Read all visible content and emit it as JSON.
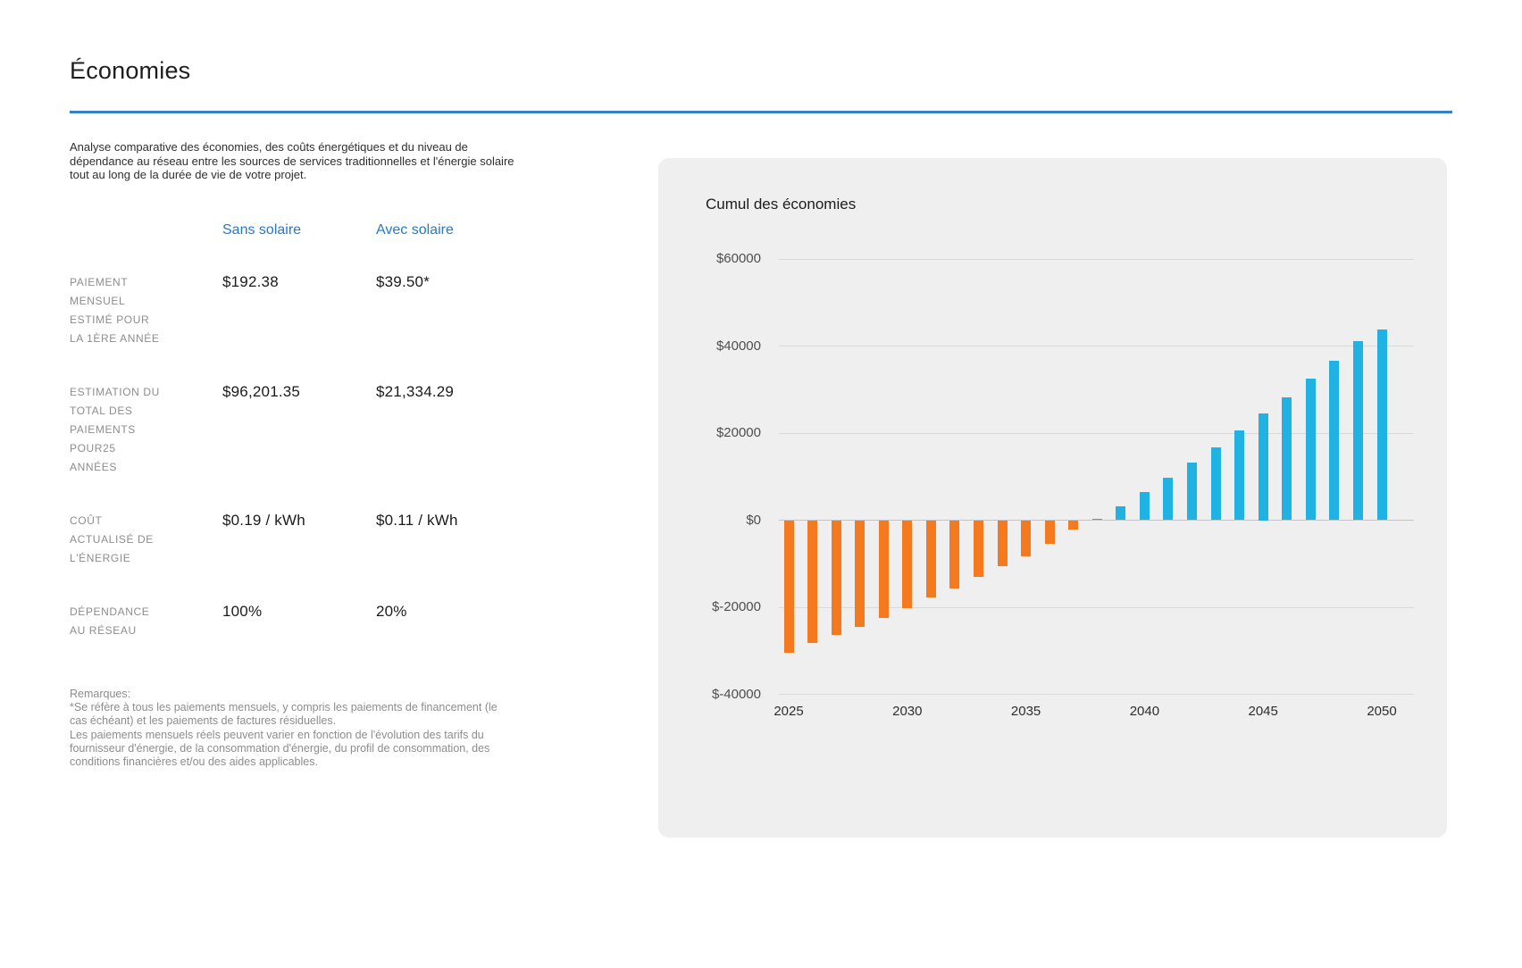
{
  "page": {
    "title": "Économies",
    "description": "Analyse comparative des économies, des coûts énergétiques et du niveau de\ndépendance au réseau entre les sources de services traditionnelles et l'énergie solaire\ntout au long de la durée de vie de votre projet.",
    "accent_color": "#3182c8"
  },
  "comparison": {
    "columns": [
      "Sans solaire",
      "Avec solaire"
    ],
    "rows": [
      {
        "label": "PAIEMENT\nMENSUEL\nESTIMÉ POUR\nLA 1ÈRE ANNÉE",
        "without_solar": "$192.38",
        "with_solar": "$39.50*"
      },
      {
        "label": "ESTIMATION DU\nTOTAL DES\nPAIEMENTS\nPOUR25\nANNÉES",
        "without_solar": "$96,201.35",
        "with_solar": "$21,334.29"
      },
      {
        "label": "COÛT\nACTUALISÉ DE\nL'ÉNERGIE",
        "without_solar": "$0.19 / kWh",
        "with_solar": "$0.11 / kWh"
      },
      {
        "label": "DÉPENDANCE\nAU RÉSEAU",
        "without_solar": "100%",
        "with_solar": "20%"
      }
    ]
  },
  "notes": {
    "heading": "Remarques:",
    "items": [
      "*Se réfère à tous les paiements mensuels, y compris les paiements de financement (le\ncas échéant) et les paiements de factures résiduelles.",
      "Les paiements mensuels réels peuvent varier en fonction de l'évolution des tarifs du\nfournisseur d'énergie, de la consommation d'énergie, du profil de consommation, des\nconditions financières et/ou des aides applicables."
    ]
  },
  "chart_data": {
    "type": "bar",
    "title": "Cumul des économies",
    "x": [
      2025,
      2026,
      2027,
      2028,
      2029,
      2030,
      2031,
      2032,
      2033,
      2034,
      2035,
      2036,
      2037,
      2038,
      2039,
      2040,
      2041,
      2042,
      2043,
      2044,
      2045,
      2046,
      2047,
      2048,
      2049,
      2050
    ],
    "values": [
      -30400,
      -28300,
      -26400,
      -24500,
      -22500,
      -20300,
      -17800,
      -15600,
      -13100,
      -10500,
      -8300,
      -5500,
      -2200,
      400,
      3200,
      6400,
      9700,
      13300,
      16700,
      20600,
      24500,
      28200,
      32600,
      36600,
      41200,
      43700
    ],
    "positive_color": "#1fb2e2",
    "negative_color": "#f4791f",
    "panel_background": "#efefef",
    "ylim": [
      -40000,
      60000
    ],
    "grid": true,
    "y_ticks": [
      {
        "value": 60000,
        "label": "$60000"
      },
      {
        "value": 40000,
        "label": "$40000"
      },
      {
        "value": 20000,
        "label": "$20000"
      },
      {
        "value": 0,
        "label": "$0"
      },
      {
        "value": -20000,
        "label": "$-20000"
      },
      {
        "value": -40000,
        "label": "$-40000"
      }
    ],
    "x_tick_labels": [
      "2025",
      "2030",
      "2035",
      "2040",
      "2045",
      "2050"
    ]
  }
}
